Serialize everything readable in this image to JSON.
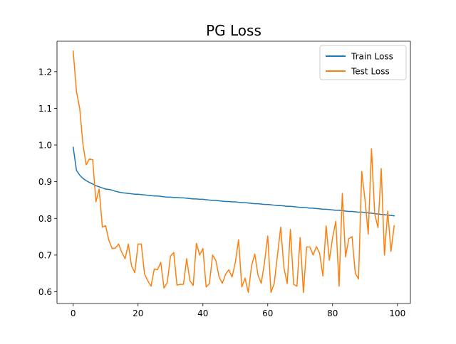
{
  "chart_data": {
    "type": "line",
    "title": "PG Loss",
    "xlabel": "",
    "ylabel": "",
    "xlim": [
      -5,
      104
    ],
    "ylim": [
      0.568,
      1.283
    ],
    "xticks": [
      0,
      20,
      40,
      60,
      80,
      100
    ],
    "xtick_labels": [
      "0",
      "20",
      "40",
      "60",
      "80",
      "100"
    ],
    "yticks": [
      0.6,
      0.7,
      0.8,
      0.9,
      1.0,
      1.1,
      1.2
    ],
    "ytick_labels": [
      "0.6",
      "0.7",
      "0.8",
      "0.9",
      "1.0",
      "1.1",
      "1.2"
    ],
    "grid": false,
    "legend_position": "top-right",
    "series": [
      {
        "name": "Train Loss",
        "color": "#1f77b4",
        "x": [
          0,
          1,
          2,
          3,
          4,
          5,
          6,
          7,
          8,
          9,
          10,
          11,
          12,
          13,
          14,
          15,
          16,
          17,
          18,
          19,
          20,
          21,
          22,
          23,
          24,
          25,
          26,
          27,
          28,
          29,
          30,
          31,
          32,
          33,
          34,
          35,
          36,
          37,
          38,
          39,
          40,
          41,
          42,
          43,
          44,
          45,
          46,
          47,
          48,
          49,
          50,
          51,
          52,
          53,
          54,
          55,
          56,
          57,
          58,
          59,
          60,
          61,
          62,
          63,
          64,
          65,
          66,
          67,
          68,
          69,
          70,
          71,
          72,
          73,
          74,
          75,
          76,
          77,
          78,
          79,
          80,
          81,
          82,
          83,
          84,
          85,
          86,
          87,
          88,
          89,
          90,
          91,
          92,
          93,
          94,
          95,
          96,
          97,
          98,
          99
        ],
        "values": [
          0.994,
          0.931,
          0.918,
          0.909,
          0.903,
          0.898,
          0.894,
          0.889,
          0.886,
          0.883,
          0.88,
          0.879,
          0.877,
          0.874,
          0.872,
          0.87,
          0.869,
          0.868,
          0.867,
          0.866,
          0.866,
          0.865,
          0.864,
          0.863,
          0.862,
          0.861,
          0.861,
          0.86,
          0.859,
          0.858,
          0.858,
          0.857,
          0.857,
          0.856,
          0.856,
          0.855,
          0.854,
          0.853,
          0.853,
          0.852,
          0.852,
          0.851,
          0.85,
          0.849,
          0.849,
          0.848,
          0.847,
          0.846,
          0.846,
          0.845,
          0.845,
          0.844,
          0.843,
          0.843,
          0.842,
          0.841,
          0.84,
          0.84,
          0.839,
          0.838,
          0.838,
          0.837,
          0.836,
          0.835,
          0.835,
          0.834,
          0.833,
          0.833,
          0.832,
          0.831,
          0.83,
          0.83,
          0.829,
          0.828,
          0.828,
          0.827,
          0.826,
          0.825,
          0.825,
          0.824,
          0.823,
          0.822,
          0.822,
          0.821,
          0.82,
          0.819,
          0.819,
          0.818,
          0.817,
          0.817,
          0.816,
          0.815,
          0.814,
          0.813,
          0.812,
          0.811,
          0.81,
          0.809,
          0.808,
          0.807
        ]
      },
      {
        "name": "Test Loss",
        "color": "#ff7f0e",
        "x": [
          0,
          1,
          2,
          3,
          4,
          5,
          6,
          7,
          8,
          9,
          10,
          11,
          12,
          13,
          14,
          15,
          16,
          17,
          18,
          19,
          20,
          21,
          22,
          23,
          24,
          25,
          26,
          27,
          28,
          29,
          30,
          31,
          32,
          33,
          34,
          35,
          36,
          37,
          38,
          39,
          40,
          41,
          42,
          43,
          44,
          45,
          46,
          47,
          48,
          49,
          50,
          51,
          52,
          53,
          54,
          55,
          56,
          57,
          58,
          59,
          60,
          61,
          62,
          63,
          64,
          65,
          66,
          67,
          68,
          69,
          70,
          71,
          72,
          73,
          74,
          75,
          76,
          77,
          78,
          79,
          80,
          81,
          82,
          83,
          84,
          85,
          86,
          87,
          88,
          89,
          90,
          91,
          92,
          93,
          94,
          95,
          96,
          97,
          98,
          99
        ],
        "values": [
          1.256,
          1.146,
          1.1,
          1.002,
          0.946,
          0.962,
          0.96,
          0.845,
          0.88,
          0.776,
          0.78,
          0.74,
          0.718,
          0.719,
          0.73,
          0.707,
          0.69,
          0.73,
          0.67,
          0.652,
          0.73,
          0.73,
          0.648,
          0.63,
          0.615,
          0.662,
          0.66,
          0.68,
          0.61,
          0.625,
          0.697,
          0.707,
          0.618,
          0.62,
          0.62,
          0.69,
          0.63,
          0.617,
          0.732,
          0.7,
          0.718,
          0.613,
          0.622,
          0.7,
          0.685,
          0.64,
          0.623,
          0.648,
          0.66,
          0.64,
          0.68,
          0.742,
          0.613,
          0.637,
          0.598,
          0.67,
          0.703,
          0.645,
          0.623,
          0.68,
          0.752,
          0.598,
          0.623,
          0.7,
          0.776,
          0.665,
          0.622,
          0.77,
          0.62,
          0.615,
          0.748,
          0.598,
          0.722,
          0.722,
          0.7,
          0.723,
          0.705,
          0.643,
          0.78,
          0.686,
          0.748,
          0.792,
          0.615,
          0.868,
          0.695,
          0.745,
          0.75,
          0.65,
          0.635,
          0.928,
          0.85,
          0.757,
          0.99,
          0.812,
          0.775,
          0.936,
          0.7,
          0.82,
          0.71,
          0.78
        ]
      }
    ]
  }
}
